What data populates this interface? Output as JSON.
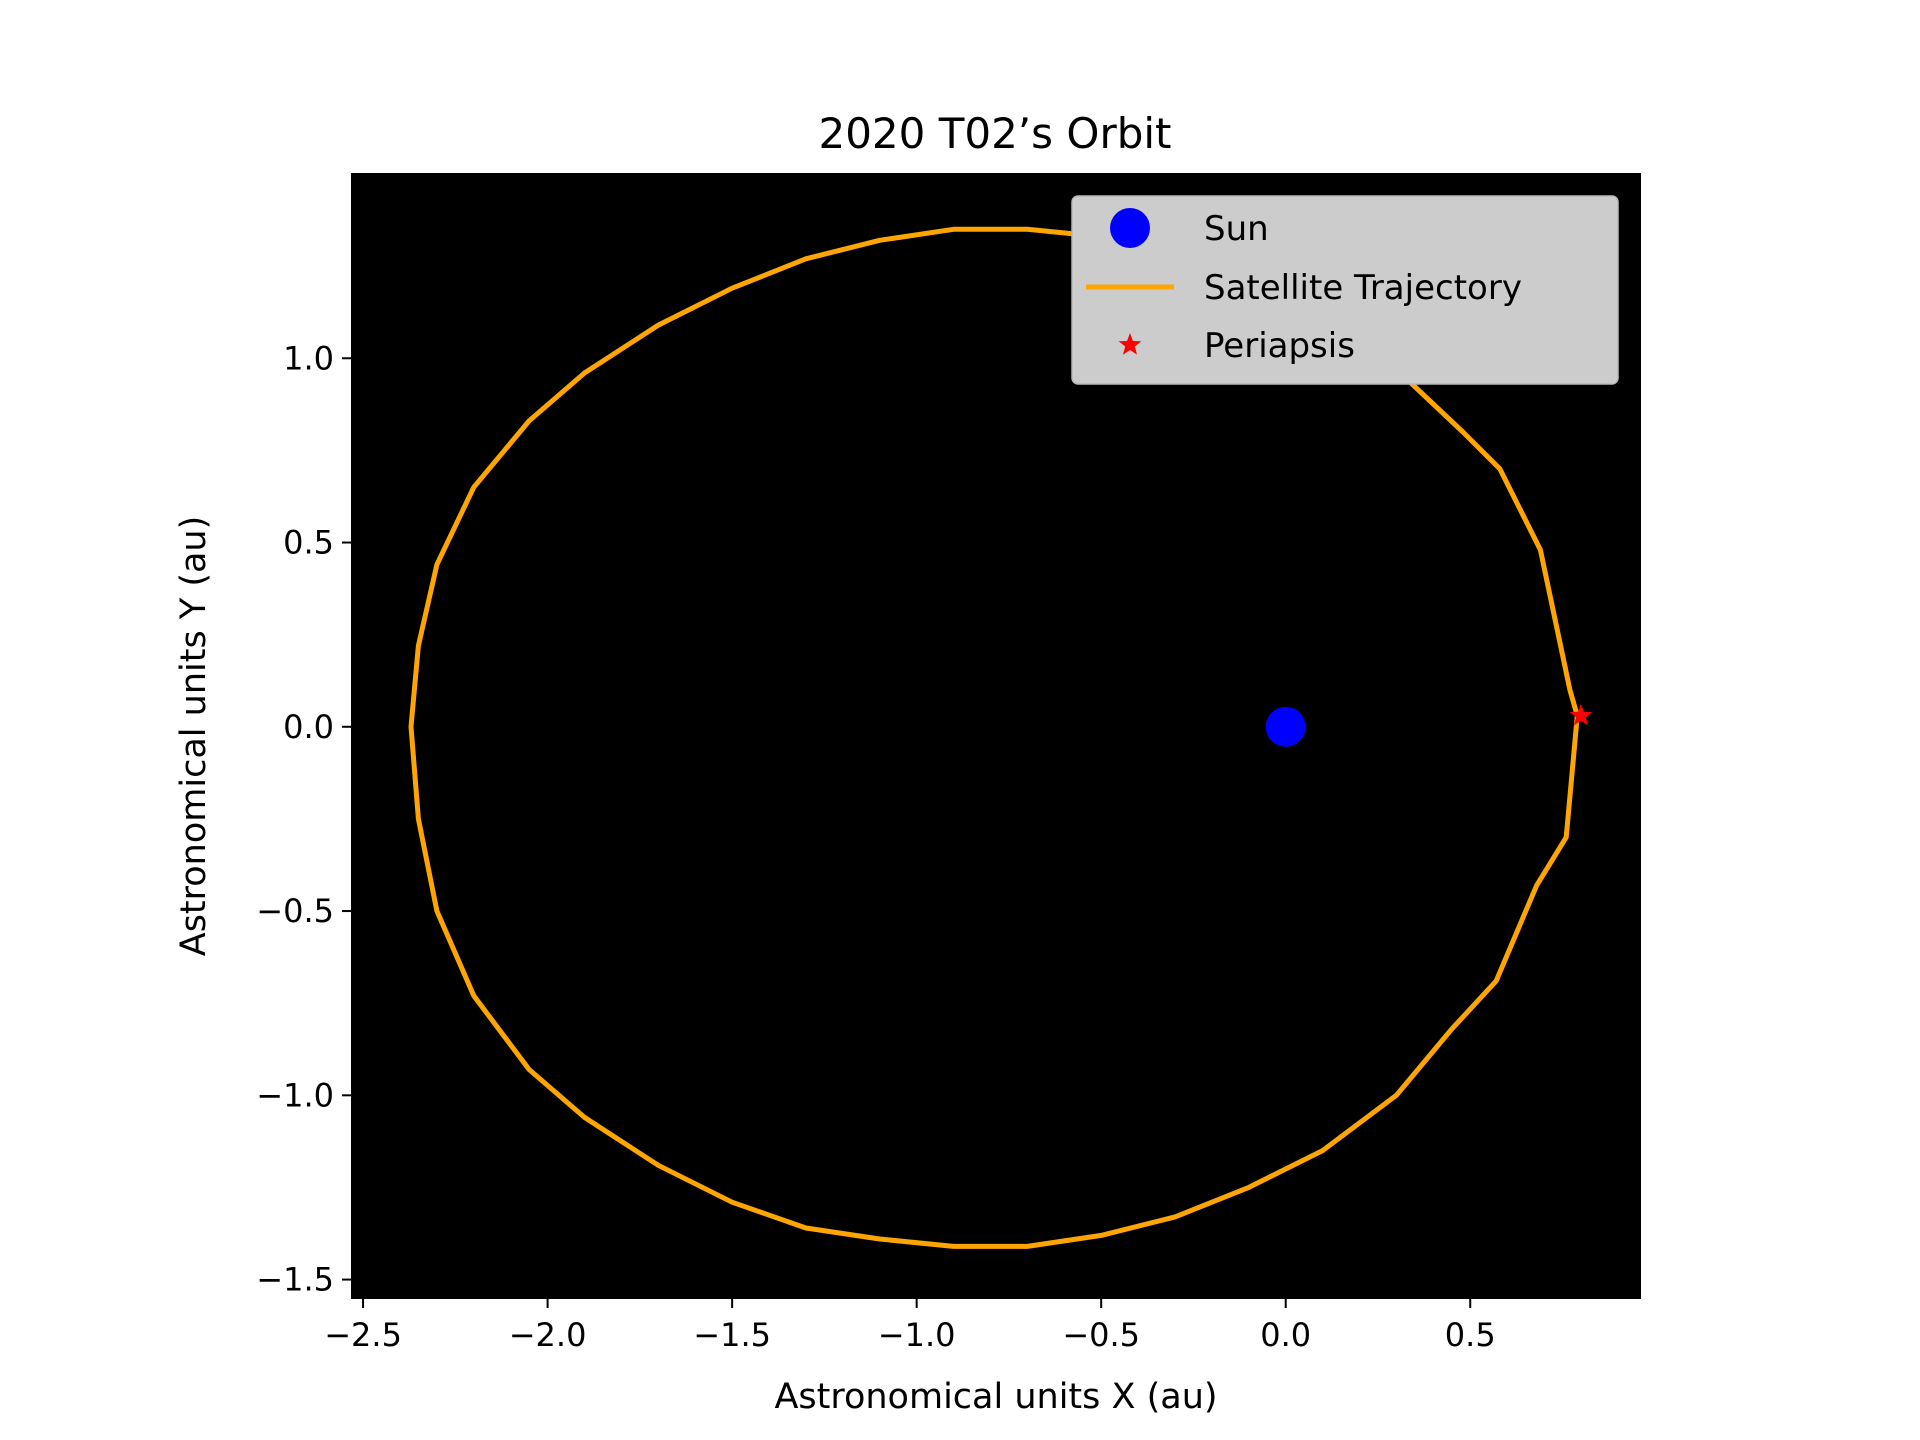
{
  "chart_data": {
    "type": "line",
    "title": "2020 T02’s Orbit",
    "xlabel": "Astronomical units X (au)",
    "ylabel": "Astronomical units Y (au)",
    "xlim": [
      -2.53,
      0.96
    ],
    "ylim": [
      -1.55,
      1.5
    ],
    "xticks": [
      -2.5,
      -2.0,
      -1.5,
      -1.0,
      -0.5,
      0.0,
      0.5
    ],
    "xtick_labels": [
      "−2.5",
      "−2.0",
      "−1.5",
      "−1.0",
      "−0.5",
      "0.0",
      "0.5"
    ],
    "yticks": [
      -1.5,
      -1.0,
      -0.5,
      0.0,
      0.5,
      1.0
    ],
    "ytick_labels": [
      "−1.5",
      "−1.0",
      "−0.5",
      "0.0",
      "0.5",
      "1.0"
    ],
    "grid": false,
    "background_color": "#000000",
    "legend_position": "top-right",
    "legend": [
      {
        "label": "Sun",
        "marker": "circle",
        "color": "#0000ff"
      },
      {
        "label": "Satellite Trajectory",
        "marker": "line",
        "color": "#ffa500"
      },
      {
        "label": "Periapsis",
        "marker": "star",
        "color": "#ff0000"
      }
    ],
    "series": [
      {
        "name": "Sun",
        "color": "#0000ff",
        "points": [
          [
            0.0,
            0.0
          ]
        ]
      },
      {
        "name": "Satellite Trajectory",
        "color": "#ffa500",
        "points": [
          [
            0.79,
            0.03
          ],
          [
            0.77,
            0.1
          ],
          [
            0.69,
            0.48
          ],
          [
            0.58,
            0.7
          ],
          [
            0.48,
            0.8
          ],
          [
            0.3,
            0.97
          ],
          [
            0.1,
            1.12
          ],
          [
            -0.1,
            1.22
          ],
          [
            -0.3,
            1.29
          ],
          [
            -0.5,
            1.33
          ],
          [
            -0.7,
            1.35
          ],
          [
            -0.9,
            1.35
          ],
          [
            -1.1,
            1.32
          ],
          [
            -1.3,
            1.27
          ],
          [
            -1.5,
            1.19
          ],
          [
            -1.7,
            1.09
          ],
          [
            -1.9,
            0.96
          ],
          [
            -2.05,
            0.83
          ],
          [
            -2.2,
            0.65
          ],
          [
            -2.3,
            0.44
          ],
          [
            -2.35,
            0.22
          ],
          [
            -2.37,
            0.0
          ],
          [
            -2.35,
            -0.25
          ],
          [
            -2.3,
            -0.5
          ],
          [
            -2.2,
            -0.73
          ],
          [
            -2.05,
            -0.93
          ],
          [
            -1.9,
            -1.06
          ],
          [
            -1.7,
            -1.19
          ],
          [
            -1.5,
            -1.29
          ],
          [
            -1.3,
            -1.36
          ],
          [
            -1.1,
            -1.39
          ],
          [
            -0.9,
            -1.41
          ],
          [
            -0.7,
            -1.41
          ],
          [
            -0.5,
            -1.38
          ],
          [
            -0.3,
            -1.33
          ],
          [
            -0.1,
            -1.25
          ],
          [
            0.1,
            -1.15
          ],
          [
            0.3,
            -1.0
          ],
          [
            0.45,
            -0.82
          ],
          [
            0.57,
            -0.69
          ],
          [
            0.68,
            -0.43
          ],
          [
            0.76,
            -0.3
          ],
          [
            0.79,
            0.03
          ]
        ]
      },
      {
        "name": "Periapsis",
        "color": "#ff0000",
        "points": [
          [
            0.8,
            0.03
          ]
        ]
      }
    ]
  }
}
